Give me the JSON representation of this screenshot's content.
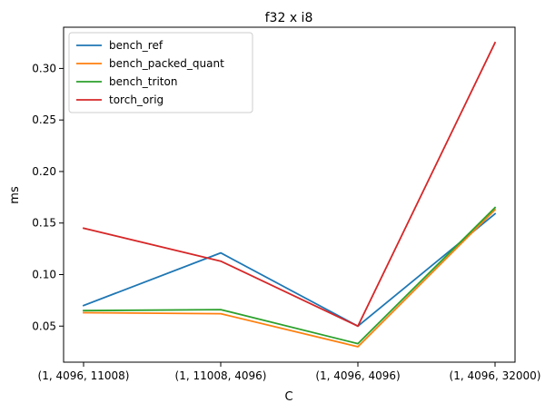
{
  "chart_data": {
    "type": "line",
    "title": "f32 x i8",
    "xlabel": "C",
    "ylabel": "ms",
    "categories": [
      "(1, 4096, 11008)",
      "(1, 11008, 4096)",
      "(1, 4096, 4096)",
      "(1, 4096, 32000)"
    ],
    "ylim": [
      0.015,
      0.34
    ],
    "yticks": [
      0.05,
      0.1,
      0.15,
      0.2,
      0.25,
      0.3
    ],
    "ytick_labels": [
      "0.05",
      "0.10",
      "0.15",
      "0.20",
      "0.25",
      "0.30"
    ],
    "grid": false,
    "legend_position": "top-left",
    "series": [
      {
        "name": "bench_ref",
        "color": "#1f77b4",
        "values": [
          0.07,
          0.121,
          0.05,
          0.159
        ]
      },
      {
        "name": "bench_packed_quant",
        "color": "#ff7f0e",
        "values": [
          0.063,
          0.062,
          0.03,
          0.163
        ]
      },
      {
        "name": "bench_triton",
        "color": "#2ca02c",
        "values": [
          0.065,
          0.066,
          0.033,
          0.165
        ]
      },
      {
        "name": "torch_orig",
        "color": "#d62728",
        "values": [
          0.145,
          0.113,
          0.05,
          0.325
        ]
      }
    ]
  }
}
